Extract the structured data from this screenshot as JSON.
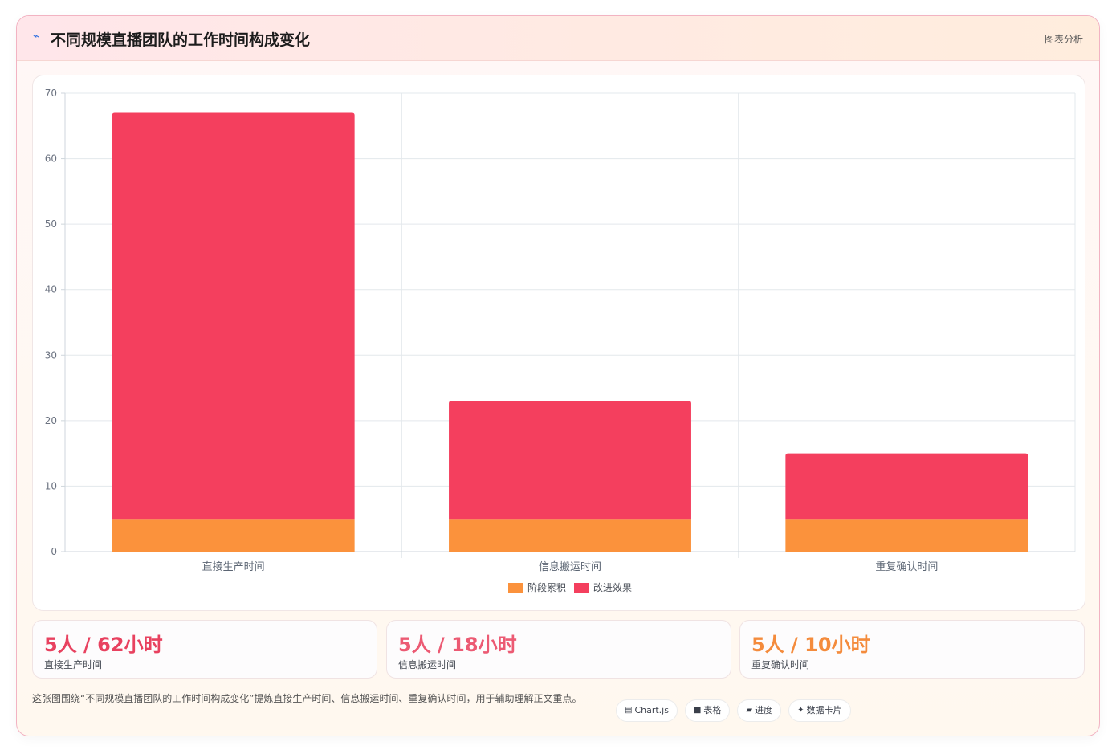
{
  "header": {
    "icon": "trend-icon",
    "title": "不同规模直播团队的工作时间构成变化",
    "tag": "图表分析"
  },
  "chart_data": {
    "type": "bar",
    "stacked": true,
    "categories": [
      "直接生产时间",
      "信息搬运时间",
      "重复确认时间"
    ],
    "series": [
      {
        "name": "阶段累积",
        "color": "#fb923c",
        "values": [
          5,
          5,
          5
        ]
      },
      {
        "name": "改进效果",
        "color": "#f43f5e",
        "values": [
          62,
          18,
          10
        ]
      }
    ],
    "ylim": [
      0,
      70
    ],
    "yticks": [
      0,
      10,
      20,
      30,
      40,
      50,
      60,
      70
    ],
    "grid": true,
    "legend": "bottom",
    "title": "",
    "xlabel": "",
    "ylabel": ""
  },
  "stats": [
    {
      "value": "5人 / 62小时",
      "label": "直接生产时间",
      "color": "#e8415f"
    },
    {
      "value": "5人 / 18小时",
      "label": "信息搬运时间",
      "color": "#ec5a73"
    },
    {
      "value": "5人 / 10小时",
      "label": "重复确认时间",
      "color": "#f48b3c"
    }
  ],
  "footer": {
    "description": "这张图围绕“不同规模直播团队的工作时间构成变化”提炼直接生产时间、信息搬运时间、重复确认时间，用于辅助理解正文重点。",
    "pills": [
      {
        "icon": "chart-icon",
        "glyph": "▤",
        "label": "Chart.js"
      },
      {
        "icon": "table-icon",
        "glyph": "■",
        "label": "表格"
      },
      {
        "icon": "progress-icon",
        "glyph": "▰",
        "label": "进度"
      },
      {
        "icon": "sparkle-icon",
        "glyph": "✦",
        "label": "数据卡片"
      }
    ]
  }
}
